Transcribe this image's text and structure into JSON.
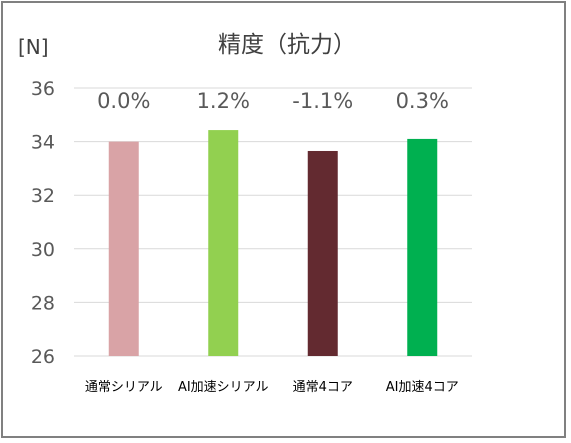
{
  "chart_data": {
    "type": "bar",
    "title": "精度（抗力）",
    "ylabel": "[N]",
    "categories": [
      "通常シリアル",
      "AI加速シリアル",
      "通常4コア",
      "AI加速4コア"
    ],
    "values": [
      34.0,
      34.43,
      33.65,
      34.1
    ],
    "data_labels": [
      "0.0%",
      "1.2%",
      "-1.1%",
      "0.3%"
    ],
    "colors": [
      "#D9A3A6",
      "#92D050",
      "#632A30",
      "#00B050"
    ],
    "ylim": [
      26,
      36
    ],
    "yticks": [
      "26",
      "28",
      "30",
      "32",
      "34",
      "36"
    ],
    "grid": true,
    "legend": "none"
  }
}
